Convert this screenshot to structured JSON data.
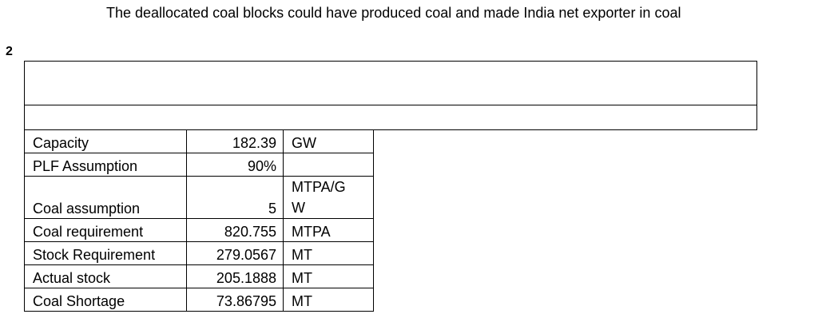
{
  "heading": "The deallocated coal blocks could have produced coal and made India net exporter in coal",
  "page_number": "2",
  "table": {
    "rows": [
      {
        "label": "Capacity",
        "value": "182.39",
        "unit": "GW"
      },
      {
        "label": "PLF Assumption",
        "value": "90%",
        "unit": ""
      },
      {
        "label": "Coal assumption",
        "value": "5",
        "unit": "MTPA/GW"
      },
      {
        "label": "Coal requirement",
        "value": "820.755",
        "unit": "MTPA"
      },
      {
        "label": "Stock Requirement",
        "value": "279.0567",
        "unit": "MT"
      },
      {
        "label": "Actual stock",
        "value": "205.1888",
        "unit": "MT"
      },
      {
        "label": "Coal Shortage",
        "value": "73.86795",
        "unit": "MT"
      }
    ]
  }
}
